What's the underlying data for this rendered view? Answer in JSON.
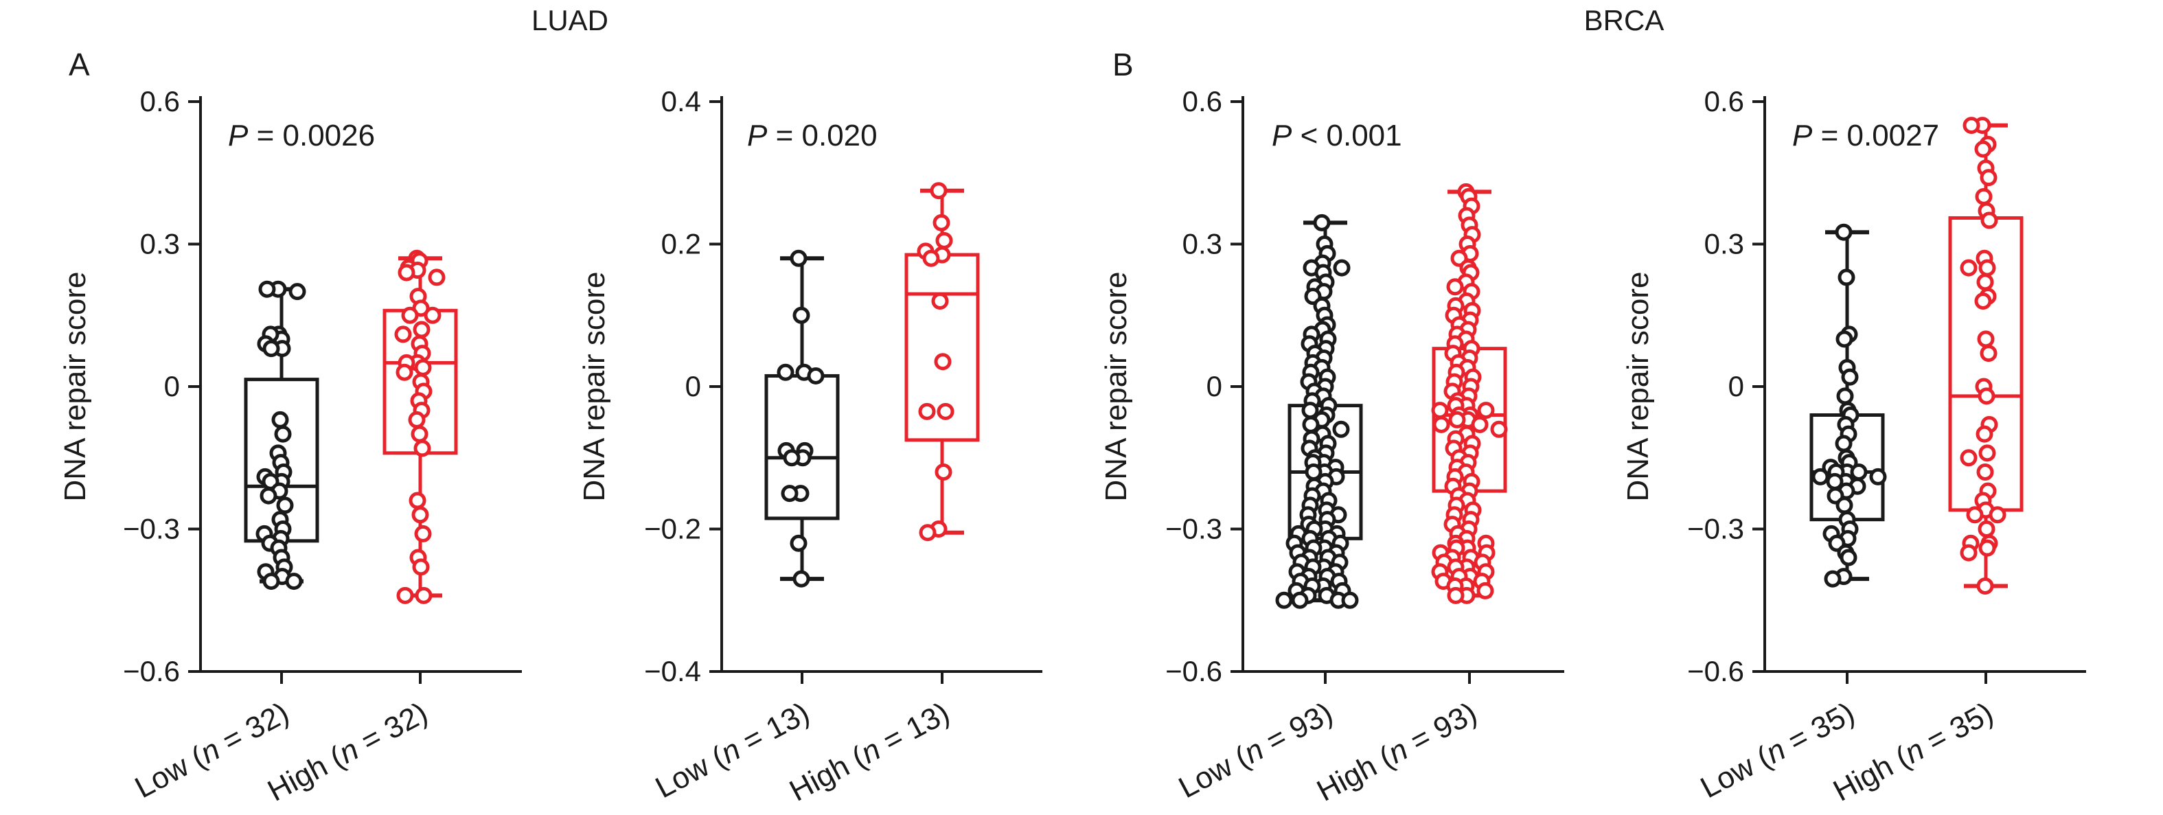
{
  "figure": {
    "groups": [
      {
        "title": "LUAD",
        "letter": "A"
      },
      {
        "title": "BRCA",
        "letter": "B"
      }
    ],
    "colors": {
      "low": "#1a1a1a",
      "high": "#e8232b"
    }
  },
  "chart_data": [
    {
      "type": "box",
      "group": "LUAD",
      "panel_letter": "A",
      "ylabel": "DNA repair score",
      "ylim": [
        -0.6,
        0.6
      ],
      "yticks": [
        "0.6",
        "0.3",
        "0",
        "−0.3",
        "−0.6"
      ],
      "yticks_values": [
        0.6,
        0.3,
        0,
        -0.3,
        -0.6
      ],
      "p_value": {
        "prefix": "P",
        "text": " = 0.0026"
      },
      "categories": [
        {
          "label_pre": "Low (",
          "label_n": "n",
          "label_post": " = 32)",
          "color": "#1a1a1a",
          "box": {
            "min": -0.41,
            "q1": -0.325,
            "median": -0.21,
            "q3": 0.015,
            "max": 0.205
          },
          "points": [
            0.205,
            0.205,
            0.2,
            0.11,
            0.1,
            0.11,
            0.09,
            0.08,
            0.08,
            -0.07,
            -0.1,
            -0.14,
            -0.16,
            -0.18,
            -0.19,
            -0.2,
            -0.2,
            -0.22,
            -0.23,
            -0.25,
            -0.28,
            -0.3,
            -0.31,
            -0.32,
            -0.33,
            -0.34,
            -0.36,
            -0.38,
            -0.39,
            -0.4,
            -0.41,
            -0.41
          ]
        },
        {
          "label_pre": "High (",
          "label_n": "n",
          "label_post": " = 32)",
          "color": "#e8232b",
          "box": {
            "min": -0.44,
            "q1": -0.14,
            "median": 0.05,
            "q3": 0.16,
            "max": 0.27
          },
          "points": [
            0.27,
            0.265,
            0.25,
            0.245,
            0.24,
            0.23,
            0.19,
            0.165,
            0.15,
            0.15,
            0.12,
            0.11,
            0.09,
            0.07,
            0.05,
            0.05,
            0.04,
            0.03,
            0.01,
            -0.01,
            -0.03,
            -0.05,
            -0.07,
            -0.1,
            -0.13,
            -0.24,
            -0.27,
            -0.31,
            -0.36,
            -0.38,
            -0.44,
            -0.44
          ]
        }
      ]
    },
    {
      "type": "box",
      "group": "LUAD",
      "ylabel": "DNA repair score",
      "ylim": [
        -0.4,
        0.4
      ],
      "yticks": [
        "0.4",
        "0.2",
        "0",
        "−0.2",
        "−0.4"
      ],
      "yticks_values": [
        0.4,
        0.2,
        0,
        -0.2,
        -0.4
      ],
      "p_value": {
        "prefix": "P",
        "text": " = 0.020"
      },
      "categories": [
        {
          "label_pre": "Low (",
          "label_n": "n",
          "label_post": " = 13)",
          "color": "#1a1a1a",
          "box": {
            "min": -0.27,
            "q1": -0.185,
            "median": -0.1,
            "q3": 0.015,
            "max": 0.18
          },
          "points": [
            0.18,
            0.1,
            0.02,
            0.02,
            0.015,
            -0.09,
            -0.09,
            -0.1,
            -0.1,
            -0.15,
            -0.15,
            -0.22,
            -0.27
          ]
        },
        {
          "label_pre": "High (",
          "label_n": "n",
          "label_post": " = 13)",
          "color": "#e8232b",
          "box": {
            "min": -0.205,
            "q1": -0.075,
            "median": 0.13,
            "q3": 0.185,
            "max": 0.275
          },
          "points": [
            0.275,
            0.23,
            0.205,
            0.19,
            0.185,
            0.18,
            0.12,
            0.035,
            -0.035,
            -0.035,
            -0.12,
            -0.2,
            -0.205
          ]
        }
      ]
    },
    {
      "type": "box",
      "group": "BRCA",
      "panel_letter": "B",
      "ylabel": "DNA repair score",
      "ylim": [
        -0.6,
        0.6
      ],
      "yticks": [
        "0.6",
        "0.3",
        "0",
        "−0.3",
        "−0.6"
      ],
      "yticks_values": [
        0.6,
        0.3,
        0,
        -0.3,
        -0.6
      ],
      "p_value": {
        "prefix": "P",
        "text": " < 0.001"
      },
      "categories": [
        {
          "label_pre": "Low (",
          "label_n": "n",
          "label_post": " = 93)",
          "color": "#1a1a1a",
          "box": {
            "min": -0.45,
            "q1": -0.32,
            "median": -0.18,
            "q3": -0.04,
            "max": 0.345
          },
          "points": [
            0.345,
            0.3,
            0.28,
            0.26,
            0.25,
            0.25,
            0.24,
            0.22,
            0.21,
            0.2,
            0.19,
            0.17,
            0.15,
            0.13,
            0.12,
            0.11,
            0.1,
            0.09,
            0.08,
            0.07,
            0.06,
            0.05,
            0.04,
            0.03,
            0.02,
            0.01,
            0.0,
            -0.01,
            -0.02,
            -0.03,
            -0.04,
            -0.05,
            -0.06,
            -0.07,
            -0.08,
            -0.09,
            -0.1,
            -0.11,
            -0.12,
            -0.13,
            -0.14,
            -0.15,
            -0.16,
            -0.16,
            -0.17,
            -0.18,
            -0.18,
            -0.19,
            -0.2,
            -0.21,
            -0.22,
            -0.23,
            -0.24,
            -0.25,
            -0.26,
            -0.27,
            -0.27,
            -0.28,
            -0.29,
            -0.3,
            -0.3,
            -0.31,
            -0.31,
            -0.32,
            -0.32,
            -0.33,
            -0.33,
            -0.34,
            -0.34,
            -0.35,
            -0.35,
            -0.36,
            -0.36,
            -0.37,
            -0.37,
            -0.38,
            -0.38,
            -0.39,
            -0.39,
            -0.4,
            -0.4,
            -0.41,
            -0.41,
            -0.42,
            -0.42,
            -0.43,
            -0.43,
            -0.44,
            -0.44,
            -0.45,
            -0.45,
            -0.45,
            -0.45
          ]
        },
        {
          "label_pre": "High (",
          "label_n": "n",
          "label_post": " = 93)",
          "color": "#e8232b",
          "box": {
            "min": -0.44,
            "q1": -0.22,
            "median": -0.06,
            "q3": 0.08,
            "max": 0.41
          },
          "points": [
            0.41,
            0.4,
            0.38,
            0.36,
            0.34,
            0.32,
            0.3,
            0.28,
            0.27,
            0.25,
            0.24,
            0.22,
            0.21,
            0.2,
            0.18,
            0.17,
            0.16,
            0.15,
            0.14,
            0.13,
            0.12,
            0.11,
            0.1,
            0.09,
            0.08,
            0.07,
            0.06,
            0.05,
            0.04,
            0.03,
            0.02,
            0.01,
            0.0,
            -0.01,
            -0.02,
            -0.03,
            -0.04,
            -0.04,
            -0.05,
            -0.05,
            -0.06,
            -0.06,
            -0.07,
            -0.07,
            -0.08,
            -0.08,
            -0.09,
            -0.1,
            -0.11,
            -0.12,
            -0.13,
            -0.14,
            -0.15,
            -0.16,
            -0.17,
            -0.18,
            -0.19,
            -0.2,
            -0.21,
            -0.22,
            -0.23,
            -0.24,
            -0.25,
            -0.26,
            -0.27,
            -0.28,
            -0.29,
            -0.3,
            -0.31,
            -0.32,
            -0.33,
            -0.33,
            -0.34,
            -0.34,
            -0.35,
            -0.35,
            -0.36,
            -0.36,
            -0.37,
            -0.37,
            -0.38,
            -0.38,
            -0.39,
            -0.39,
            -0.4,
            -0.4,
            -0.41,
            -0.41,
            -0.42,
            -0.42,
            -0.43,
            -0.44,
            -0.44
          ]
        }
      ]
    },
    {
      "type": "box",
      "group": "BRCA",
      "ylabel": "DNA repair score",
      "ylim": [
        -0.6,
        0.6
      ],
      "yticks": [
        "0.6",
        "0.3",
        "0",
        "−0.3",
        "−0.6"
      ],
      "yticks_values": [
        0.6,
        0.3,
        0,
        -0.3,
        -0.6
      ],
      "p_value": {
        "prefix": "P",
        "text": " = 0.0027"
      },
      "categories": [
        {
          "label_pre": "Low (",
          "label_n": "n",
          "label_post": " = 35)",
          "color": "#1a1a1a",
          "box": {
            "min": -0.405,
            "q1": -0.28,
            "median": -0.18,
            "q3": -0.06,
            "max": 0.325
          },
          "points": [
            0.325,
            0.23,
            0.11,
            0.1,
            0.04,
            0.02,
            -0.02,
            -0.05,
            -0.06,
            -0.08,
            -0.1,
            -0.12,
            -0.15,
            -0.16,
            -0.17,
            -0.18,
            -0.18,
            -0.18,
            -0.19,
            -0.19,
            -0.2,
            -0.2,
            -0.21,
            -0.22,
            -0.23,
            -0.25,
            -0.28,
            -0.3,
            -0.31,
            -0.32,
            -0.33,
            -0.35,
            -0.36,
            -0.4,
            -0.405
          ]
        },
        {
          "label_pre": "High (",
          "label_n": "n",
          "label_post": " = 35)",
          "color": "#e8232b",
          "box": {
            "min": -0.42,
            "q1": -0.26,
            "median": -0.02,
            "q3": 0.355,
            "max": 0.55
          },
          "points": [
            0.55,
            0.55,
            0.51,
            0.5,
            0.46,
            0.44,
            0.4,
            0.37,
            0.35,
            0.27,
            0.25,
            0.25,
            0.22,
            0.19,
            0.18,
            0.1,
            0.07,
            0.0,
            -0.02,
            -0.08,
            -0.1,
            -0.14,
            -0.15,
            -0.18,
            -0.22,
            -0.24,
            -0.26,
            -0.27,
            -0.27,
            -0.3,
            -0.33,
            -0.33,
            -0.34,
            -0.35,
            -0.42
          ]
        }
      ]
    }
  ]
}
